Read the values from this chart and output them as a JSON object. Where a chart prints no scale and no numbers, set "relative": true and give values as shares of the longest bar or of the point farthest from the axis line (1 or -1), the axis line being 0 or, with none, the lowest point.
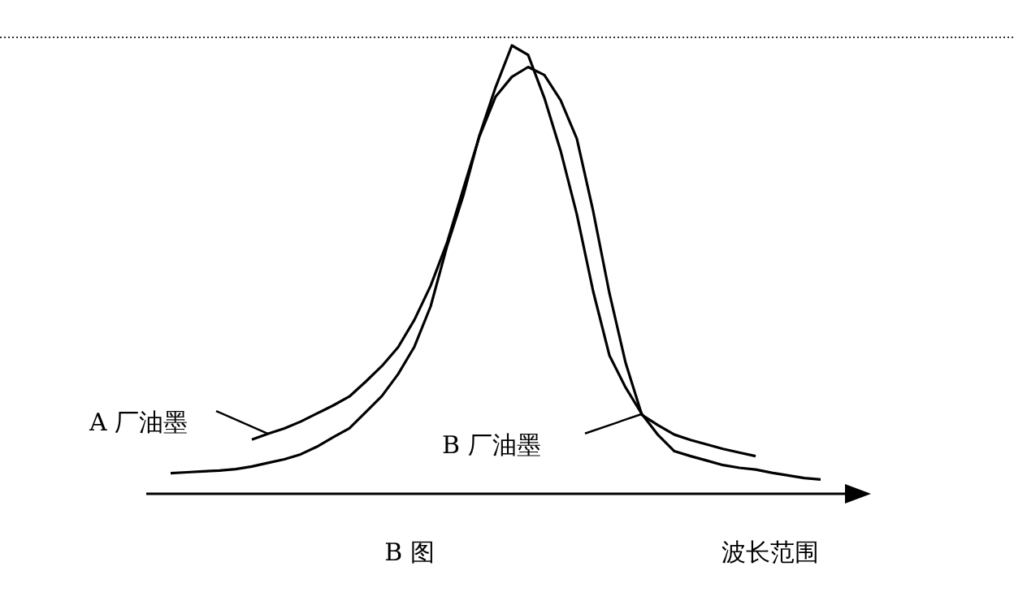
{
  "chart_data": {
    "type": "line",
    "relative": true,
    "xlabel": "波长范围",
    "annotations": [
      "B 图"
    ],
    "categories": [
      null,
      null,
      null,
      null,
      null,
      null,
      null,
      null,
      null,
      null,
      null,
      null,
      null,
      null,
      null,
      null,
      null,
      null,
      null,
      null,
      null,
      null,
      null,
      null,
      null,
      null,
      null,
      null,
      null,
      null,
      null,
      null,
      null,
      null,
      null,
      null,
      null,
      null,
      null,
      null,
      null
    ],
    "series": [
      {
        "name": "A 厂油墨",
        "color": "#000000",
        "values": [
          null,
          null,
          null,
          null,
          null,
          0.121,
          0.134,
          0.146,
          0.161,
          0.179,
          0.197,
          0.217,
          0.25,
          0.285,
          0.327,
          0.388,
          0.464,
          0.559,
          0.679,
          0.797,
          0.886,
          0.93,
          0.952,
          0.934,
          0.878,
          0.792,
          0.631,
          0.448,
          0.292,
          0.176,
          0.153,
          0.132,
          0.12,
          0.11,
          0.1,
          0.092,
          0.084,
          null,
          null,
          null,
          null
        ]
      },
      {
        "name": "B 厂油墨",
        "color": "#000000",
        "values": [
          0.046,
          0.048,
          0.05,
          0.052,
          0.055,
          0.061,
          0.069,
          0.077,
          0.088,
          0.105,
          0.126,
          0.146,
          0.182,
          0.218,
          0.267,
          0.328,
          0.418,
          0.551,
          0.664,
          0.799,
          0.907,
          1,
          0.979,
          0.883,
          0.765,
          0.623,
          0.452,
          0.309,
          0.237,
          0.178,
          0.131,
          0.095,
          0.084,
          0.074,
          0.064,
          0.058,
          0.054,
          0.047,
          0.041,
          0.035,
          0.032
        ]
      }
    ]
  }
}
